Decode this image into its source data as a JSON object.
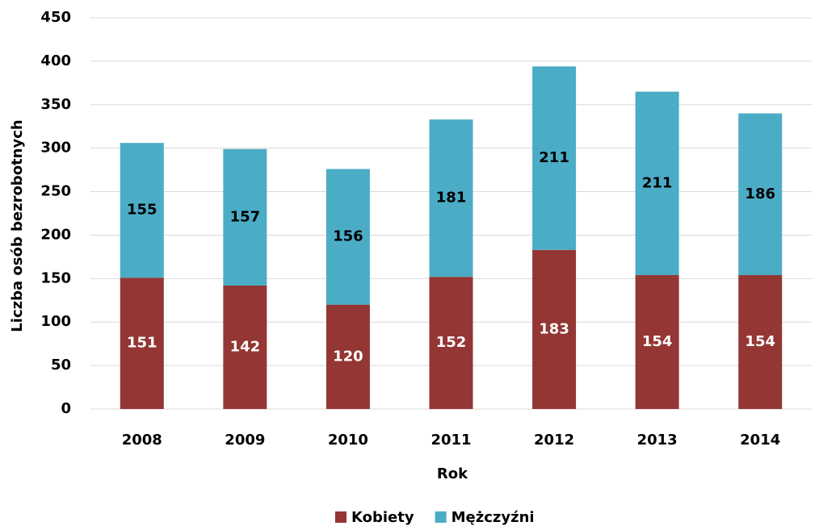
{
  "chart_data": {
    "type": "bar",
    "stacked": true,
    "x_label": "Rok",
    "y_label": "Liczba osób bezrobotnych",
    "categories": [
      "2008",
      "2009",
      "2010",
      "2011",
      "2012",
      "2013",
      "2014"
    ],
    "series": [
      {
        "name": "Kobiety",
        "color": "#943634",
        "values": [
          151,
          142,
          120,
          152,
          183,
          154,
          154
        ]
      },
      {
        "name": "Mężczyźni",
        "color": "#4bacc6",
        "values": [
          155,
          157,
          156,
          181,
          211,
          211,
          186
        ]
      }
    ],
    "ylim": [
      0,
      450
    ],
    "yticks": [
      0,
      50,
      100,
      150,
      200,
      250,
      300,
      350,
      400,
      450
    ],
    "grid": true,
    "legend": "bottom"
  }
}
